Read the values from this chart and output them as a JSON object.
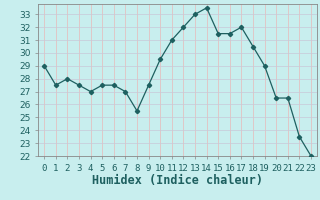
{
  "x": [
    0,
    1,
    2,
    3,
    4,
    5,
    6,
    7,
    8,
    9,
    10,
    11,
    12,
    13,
    14,
    15,
    16,
    17,
    18,
    19,
    20,
    21,
    22,
    23
  ],
  "y": [
    29,
    27.5,
    28,
    27.5,
    27,
    27.5,
    27.5,
    27,
    25.5,
    27.5,
    29.5,
    31,
    32,
    33,
    33.5,
    31.5,
    31.5,
    32,
    30.5,
    29,
    26.5,
    26.5,
    23.5,
    22
  ],
  "line_color": "#1e6060",
  "marker": "D",
  "marker_size": 2.2,
  "background_color": "#c8eeee",
  "grid_color_h": "#c8c8d8",
  "grid_color_v": "#e8b8b8",
  "title": "",
  "xlabel": "Humidex (Indice chaleur)",
  "ylabel": "",
  "ylim": [
    22,
    33.8
  ],
  "xlim": [
    -0.5,
    23.5
  ],
  "yticks": [
    22,
    23,
    24,
    25,
    26,
    27,
    28,
    29,
    30,
    31,
    32,
    33
  ],
  "xtick_labels": [
    "0",
    "1",
    "2",
    "3",
    "4",
    "5",
    "6",
    "7",
    "8",
    "9",
    "10",
    "11",
    "12",
    "13",
    "14",
    "15",
    "16",
    "17",
    "18",
    "19",
    "20",
    "21",
    "22",
    "23"
  ],
  "tick_fontsize": 6.5,
  "xlabel_fontsize": 8.5,
  "spine_color": "#888888"
}
